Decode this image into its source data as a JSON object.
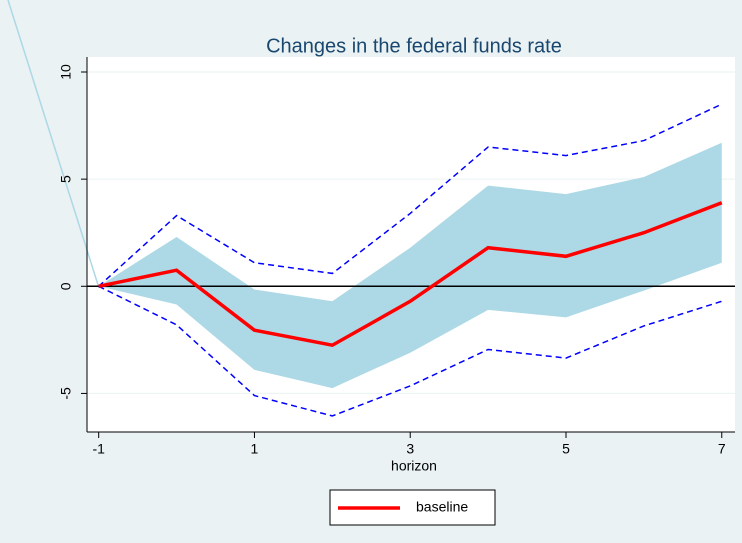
{
  "chart_data": {
    "type": "line",
    "title": "Changes in the federal funds rate",
    "xlabel": "horizon",
    "x": [
      -1,
      0,
      1,
      2,
      3,
      4,
      5,
      6,
      7
    ],
    "series": [
      {
        "name": "baseline",
        "color": "#ff0000",
        "values": [
          0,
          0.75,
          -2.05,
          -2.75,
          -0.7,
          1.8,
          1.4,
          2.5,
          3.9
        ]
      }
    ],
    "band": {
      "color": "#add8e6",
      "upper": [
        0,
        2.3,
        -0.15,
        -0.7,
        1.8,
        4.7,
        4.3,
        5.1,
        6.7
      ],
      "lower": [
        0,
        -0.85,
        -3.9,
        -4.75,
        -3.1,
        -1.1,
        -1.45,
        -0.2,
        1.1
      ]
    },
    "bounds": {
      "color": "#0000ff",
      "upper": [
        0,
        3.3,
        1.1,
        0.6,
        3.4,
        6.5,
        6.1,
        6.8,
        8.5
      ],
      "lower": [
        0,
        -1.8,
        -5.1,
        -6.05,
        -4.65,
        -2.95,
        -3.35,
        -1.85,
        -0.7
      ]
    },
    "hline": 0,
    "xlim": [
      -1.15,
      7.17
    ],
    "ylim": [
      -6.8,
      10.7
    ],
    "xticks": [
      -1,
      1,
      3,
      5,
      7
    ],
    "yticks": [
      -5,
      0,
      5,
      10
    ],
    "grid": true,
    "legend": "bottom"
  }
}
